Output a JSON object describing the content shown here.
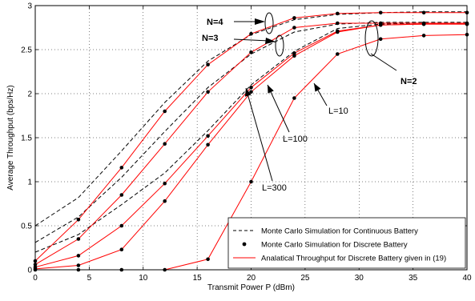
{
  "chart_data": {
    "type": "line",
    "title": "",
    "xlabel": "Transmit Power P (dBm)",
    "ylabel": "Average Throughput (bps/Hz)",
    "xlim": [
      0,
      40
    ],
    "ylim": [
      0,
      3
    ],
    "xticks": [
      0,
      5,
      10,
      15,
      20,
      25,
      30,
      35,
      40
    ],
    "yticks": [
      0,
      0.5,
      1,
      1.5,
      2,
      2.5,
      3
    ],
    "xtick_labels": [
      "0",
      "5",
      "10",
      "15",
      "20",
      "25",
      "30",
      "35",
      "40"
    ],
    "ytick_labels": [
      "0",
      "0.5",
      "1",
      "1.5",
      "2",
      "2.5",
      "3"
    ],
    "grid": true,
    "legend_position": "bottom-right",
    "legend": [
      {
        "label": "Monte Carlo Simulation for Continuous Battery",
        "style": "dashed",
        "color": "#000000"
      },
      {
        "label": "Monte Carlo Simulation for Discrete Battery",
        "style": "marker",
        "color": "#000000"
      },
      {
        "label": "Analatical Throughput for Discrete Battery given in (19)",
        "style": "solid",
        "color": "#ff0000"
      }
    ],
    "annotations": [
      {
        "text": "N=4",
        "bold": true
      },
      {
        "text": "N=3",
        "bold": true
      },
      {
        "text": "N=2",
        "bold": true
      },
      {
        "text": "L=10",
        "bold": false
      },
      {
        "text": "L=100",
        "bold": false
      },
      {
        "text": "L=300",
        "bold": false
      }
    ],
    "x": [
      0,
      4,
      8,
      12,
      16,
      20,
      24,
      28,
      32,
      36,
      40
    ],
    "continuous_series": [
      {
        "values": [
          0.5,
          0.82,
          1.35,
          1.9,
          2.37,
          2.67,
          2.84,
          2.9,
          2.92,
          2.93,
          2.93
        ]
      },
      {
        "values": [
          0.31,
          0.6,
          1.05,
          1.57,
          2.07,
          2.45,
          2.7,
          2.79,
          2.81,
          2.81,
          2.81
        ]
      },
      {
        "values": [
          0.2,
          0.4,
          0.74,
          1.1,
          1.58,
          2.1,
          2.48,
          2.74,
          2.79,
          2.8,
          2.8
        ]
      }
    ],
    "discrete_series": [
      {
        "values": [
          0.1,
          0.57,
          1.16,
          1.8,
          2.33,
          2.68,
          2.86,
          2.91,
          2.92,
          2.92,
          2.92
        ]
      },
      {
        "values": [
          0.06,
          0.35,
          0.85,
          1.43,
          2.02,
          2.47,
          2.75,
          2.8,
          2.8,
          2.8,
          2.8
        ]
      },
      {
        "values": [
          0.03,
          0.16,
          0.5,
          0.98,
          1.52,
          2.07,
          2.46,
          2.71,
          2.78,
          2.79,
          2.79
        ]
      },
      {
        "values": [
          0.01,
          0.05,
          0.23,
          0.78,
          1.42,
          2.02,
          2.43,
          2.7,
          2.78,
          2.79,
          2.79
        ]
      },
      {
        "values": [
          0.0,
          0.0,
          0.0,
          0.0,
          0.12,
          1.0,
          1.95,
          2.45,
          2.62,
          2.66,
          2.67
        ]
      }
    ]
  }
}
